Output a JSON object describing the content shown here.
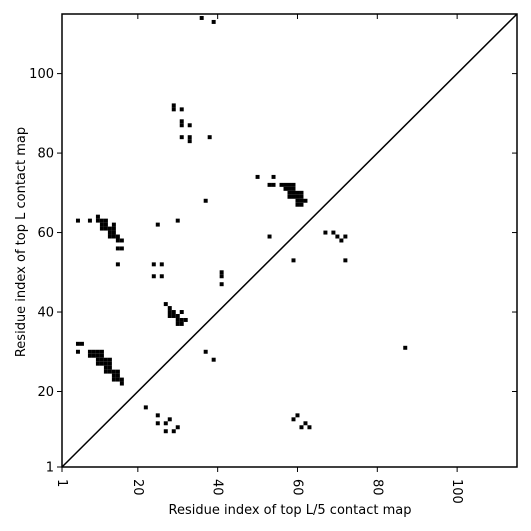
{
  "chart_data": {
    "type": "scatter",
    "title": "",
    "xlabel": "Residue index of top L/5 contact map",
    "ylabel": "Residue index of top L contact map",
    "xlim": [
      1,
      115
    ],
    "ylim": [
      1,
      115
    ],
    "x_ticks": [
      1,
      20,
      40,
      60,
      80,
      100
    ],
    "y_ticks": [
      1,
      20,
      40,
      60,
      80,
      100
    ],
    "x_tick_labels": [
      "1",
      "20",
      "40",
      "60",
      "80",
      "100"
    ],
    "y_tick_labels": [
      "1",
      "20",
      "40",
      "60",
      "80",
      "100"
    ],
    "grid": false,
    "diagonal": true,
    "cell_color": "#000000",
    "lower_triangle_points": [
      [
        8,
        29
      ],
      [
        8,
        30
      ],
      [
        9,
        29
      ],
      [
        9,
        30
      ],
      [
        10,
        27
      ],
      [
        10,
        28
      ],
      [
        10,
        29
      ],
      [
        10,
        30
      ],
      [
        11,
        27
      ],
      [
        11,
        28
      ],
      [
        11,
        29
      ],
      [
        11,
        30
      ],
      [
        12,
        25
      ],
      [
        12,
        26
      ],
      [
        12,
        27
      ],
      [
        12,
        28
      ],
      [
        13,
        25
      ],
      [
        13,
        26
      ],
      [
        13,
        27
      ],
      [
        13,
        28
      ],
      [
        14,
        23
      ],
      [
        14,
        24
      ],
      [
        14,
        25
      ],
      [
        15,
        23
      ],
      [
        15,
        24
      ],
      [
        15,
        25
      ],
      [
        16,
        22
      ],
      [
        16,
        23
      ],
      [
        22,
        16
      ],
      [
        25,
        12
      ],
      [
        25,
        14
      ],
      [
        27,
        10
      ],
      [
        27,
        12
      ],
      [
        28,
        13
      ],
      [
        29,
        10
      ],
      [
        30,
        11
      ],
      [
        28,
        39
      ],
      [
        28,
        40
      ],
      [
        28,
        41
      ],
      [
        29,
        39
      ],
      [
        29,
        40
      ],
      [
        30,
        37
      ],
      [
        30,
        38
      ],
      [
        30,
        39
      ],
      [
        31,
        37
      ],
      [
        31,
        38
      ],
      [
        31,
        40
      ],
      [
        32,
        38
      ],
      [
        27,
        42
      ],
      [
        37,
        30
      ],
      [
        39,
        28
      ],
      [
        41,
        47
      ],
      [
        41,
        49
      ],
      [
        41,
        50
      ],
      [
        59,
        13
      ],
      [
        60,
        14
      ],
      [
        61,
        11
      ],
      [
        62,
        12
      ],
      [
        63,
        11
      ],
      [
        87,
        31
      ],
      [
        5,
        30
      ],
      [
        5,
        32
      ],
      [
        6,
        32
      ],
      [
        15,
        52
      ]
    ],
    "upper_triangle_points": [
      [
        5,
        63
      ],
      [
        8,
        63
      ],
      [
        10,
        63
      ],
      [
        10,
        64
      ],
      [
        11,
        61
      ],
      [
        11,
        62
      ],
      [
        11,
        63
      ],
      [
        12,
        61
      ],
      [
        12,
        62
      ],
      [
        12,
        63
      ],
      [
        13,
        59
      ],
      [
        13,
        60
      ],
      [
        13,
        61
      ],
      [
        14,
        59
      ],
      [
        14,
        60
      ],
      [
        14,
        61
      ],
      [
        14,
        62
      ],
      [
        15,
        56
      ],
      [
        15,
        58
      ],
      [
        15,
        59
      ],
      [
        16,
        56
      ],
      [
        16,
        58
      ],
      [
        24,
        49
      ],
      [
        24,
        52
      ],
      [
        25,
        62
      ],
      [
        26,
        49
      ],
      [
        26,
        52
      ],
      [
        30,
        63
      ],
      [
        29,
        91
      ],
      [
        29,
        92
      ],
      [
        31,
        84
      ],
      [
        31,
        87
      ],
      [
        31,
        88
      ],
      [
        31,
        91
      ],
      [
        33,
        83
      ],
      [
        33,
        84
      ],
      [
        33,
        87
      ],
      [
        36,
        114
      ],
      [
        38,
        84
      ],
      [
        39,
        113
      ],
      [
        37,
        68
      ],
      [
        50,
        74
      ],
      [
        53,
        59
      ],
      [
        53,
        72
      ],
      [
        54,
        72
      ],
      [
        54,
        74
      ],
      [
        56,
        72
      ],
      [
        57,
        71
      ],
      [
        57,
        72
      ],
      [
        58,
        69
      ],
      [
        58,
        70
      ],
      [
        58,
        71
      ],
      [
        58,
        72
      ],
      [
        59,
        69
      ],
      [
        59,
        70
      ],
      [
        59,
        71
      ],
      [
        59,
        72
      ],
      [
        60,
        67
      ],
      [
        60,
        68
      ],
      [
        60,
        69
      ],
      [
        60,
        70
      ],
      [
        61,
        67
      ],
      [
        61,
        68
      ],
      [
        61,
        69
      ],
      [
        61,
        70
      ],
      [
        62,
        68
      ],
      [
        59,
        53
      ],
      [
        67,
        60
      ],
      [
        69,
        60
      ],
      [
        70,
        59
      ],
      [
        71,
        58
      ],
      [
        72,
        59
      ],
      [
        72,
        53
      ]
    ]
  }
}
